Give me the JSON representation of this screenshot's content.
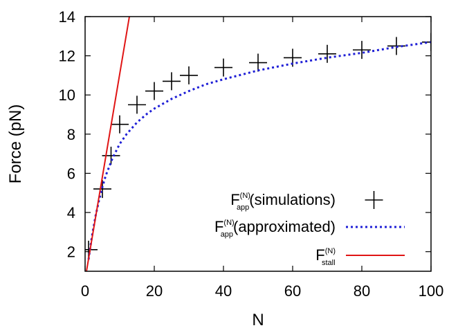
{
  "chart_data": {
    "type": "scatter",
    "xlabel": "N",
    "ylabel": "Force (pN)",
    "xlim": [
      0,
      100
    ],
    "ylim": [
      1,
      14
    ],
    "xticks": [
      0,
      20,
      40,
      60,
      80,
      100
    ],
    "yticks": [
      2,
      4,
      6,
      8,
      10,
      12,
      14
    ],
    "grid": false,
    "legend_position": "bottom-right",
    "series": [
      {
        "name": "F_app^(N) (simulations)",
        "label_main": "F",
        "label_sup": "(N)",
        "label_sub": "app",
        "label_rest": "(simulations)",
        "style": "markers-plus",
        "color": "#000000",
        "x": [
          1,
          5,
          7.5,
          10,
          15,
          20,
          25,
          30,
          40,
          50,
          60,
          70,
          80,
          90,
          100
        ],
        "y": [
          2.1,
          5.2,
          6.9,
          8.5,
          9.5,
          10.2,
          10.7,
          11.0,
          11.4,
          11.65,
          11.9,
          12.1,
          12.3,
          12.5,
          12.7
        ]
      },
      {
        "name": "F_app^(N) (approximated)",
        "label_main": "F",
        "label_sup": "(N)",
        "label_sub": "app",
        "label_rest": "(approximated)",
        "style": "dotted-line",
        "color": "#1f1fd6",
        "x": [
          1,
          2,
          3,
          4,
          5,
          6,
          8,
          10,
          12,
          15,
          18,
          20,
          25,
          30,
          35,
          40,
          50,
          60,
          70,
          80,
          90,
          100
        ],
        "y": [
          1.6,
          2.8,
          3.8,
          4.6,
          5.3,
          5.9,
          6.8,
          7.5,
          8.0,
          8.6,
          9.05,
          9.3,
          9.8,
          10.2,
          10.55,
          10.8,
          11.25,
          11.6,
          11.9,
          12.15,
          12.45,
          12.7
        ]
      },
      {
        "name": "F_stall^(N)",
        "label_main": "F",
        "label_sup": "(N)",
        "label_sub": "stall",
        "label_rest": "",
        "style": "solid-line",
        "color": "#e01414",
        "x": [
          0.4,
          12.8
        ],
        "y": [
          1.0,
          14.0
        ]
      }
    ]
  }
}
